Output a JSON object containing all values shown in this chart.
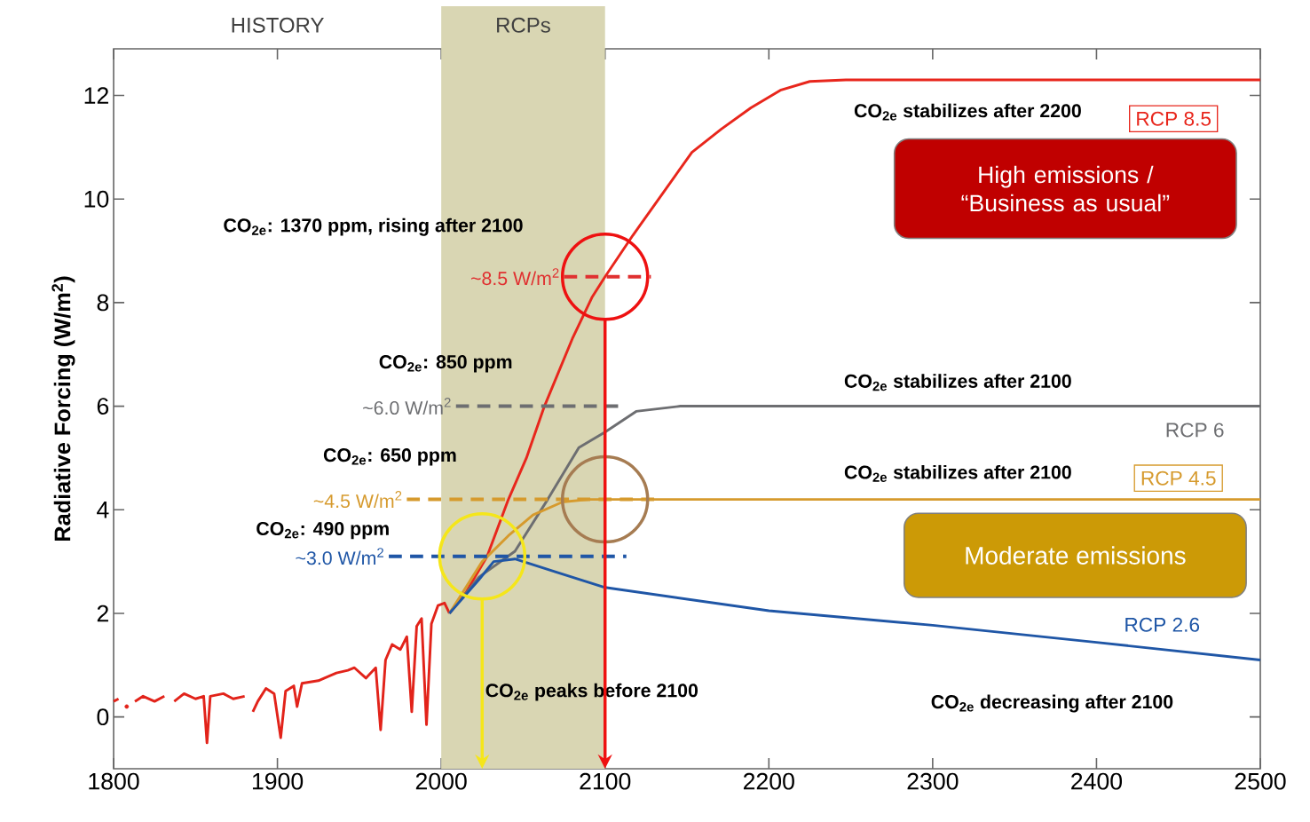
{
  "chart_data": {
    "type": "line",
    "ylabel": "Radiative Forcing (W/m$^{2}$)",
    "xlim": [
      1800,
      2500
    ],
    "xticks": [
      1800,
      1900,
      2000,
      2100,
      2200,
      2300,
      2400,
      2500
    ],
    "ylim": [
      -1,
      12.9
    ],
    "yticks": [
      0,
      2,
      4,
      6,
      8,
      10,
      12
    ],
    "marker": "none",
    "line_style": "solid",
    "legend": "right",
    "series": [
      {
        "color": "#e2231a",
        "x": [
          1800,
          1803,
          1806,
          1808,
          1810,
          1813,
          1818,
          1825,
          1831,
          1835,
          1837,
          1843,
          1850,
          1855,
          1857,
          1859,
          1867,
          1873,
          1880,
          1883,
          1885,
          1888,
          1893,
          1898,
          1902,
          1905,
          1910,
          1912,
          1915,
          1925,
          1936,
          1943,
          1947,
          1954,
          1960,
          1963,
          1966,
          1970,
          1975,
          1979,
          1982,
          1985,
          1988,
          1991,
          1994,
          1998,
          2002,
          2005
        ],
        "values": [
          0.3,
          0.35,
          null,
          0.2,
          null,
          0.3,
          0.4,
          0.3,
          0.4,
          null,
          0.3,
          0.45,
          0.35,
          0.4,
          -0.5,
          0.4,
          0.45,
          0.35,
          0.4,
          null,
          0.1,
          0.3,
          0.55,
          0.45,
          -0.4,
          0.5,
          0.6,
          0.2,
          0.65,
          0.7,
          0.85,
          0.9,
          0.95,
          0.75,
          0.95,
          -0.25,
          1.1,
          1.4,
          1.3,
          1.55,
          0.1,
          1.75,
          1.9,
          -0.15,
          1.8,
          2.15,
          2.2,
          2.0
        ]
      },
      {
        "name": "RCP 8.5",
        "color": "#e8261c",
        "x": [
          2005,
          2015,
          2028,
          2041,
          2052,
          2063,
          2080,
          2092,
          2100,
          2117,
          2135,
          2153,
          2171,
          2189,
          2207,
          2225,
          2247,
          2500
        ],
        "values": [
          2.0,
          2.4,
          3.1,
          4.2,
          5.0,
          6.0,
          7.3,
          8.1,
          8.5,
          9.3,
          10.1,
          10.9,
          11.35,
          11.76,
          12.1,
          12.27,
          12.3,
          12.3
        ]
      },
      {
        "name": "RCP 6",
        "color": "#6d6e71",
        "x": [
          2005,
          2023,
          2045,
          2065,
          2084,
          2100,
          2119,
          2146,
          2500
        ],
        "values": [
          2.0,
          2.7,
          3.2,
          4.2,
          5.2,
          5.5,
          5.9,
          6.0,
          6.0
        ]
      },
      {
        "name": "RCP 4.5",
        "color": "#d69a2d",
        "x": [
          2005,
          2025,
          2041,
          2056,
          2074,
          2090,
          2150,
          2500
        ],
        "values": [
          2.0,
          3.0,
          3.5,
          3.9,
          4.15,
          4.2,
          4.2,
          4.2
        ]
      },
      {
        "name": "RCP 2.6",
        "color": "#1f56a6",
        "x": [
          2005,
          2023,
          2032,
          2045,
          2070,
          2100,
          2200,
          2300,
          2400,
          2500
        ],
        "values": [
          2.0,
          2.65,
          3.0,
          3.05,
          2.8,
          2.5,
          2.05,
          1.77,
          1.44,
          1.1
        ]
      }
    ],
    "ref_lines": [
      {
        "axis": "y",
        "value": 8.5,
        "label": "~8.5 W/m$^{2}$",
        "color": "#e03030",
        "line_style": "dashed"
      },
      {
        "axis": "y",
        "value": 6.0,
        "label": "~6.0 W/m$^{2}$",
        "color": "#6d6e71",
        "line_style": "dashed"
      },
      {
        "axis": "y",
        "value": 4.2,
        "label": "~4.5 W/m$^{2}$",
        "color": "#d69a2d",
        "line_style": "dashed"
      },
      {
        "axis": "y",
        "value": 3.1,
        "label": "~3.0 W/m$^{2}$",
        "color": "#1f56a6",
        "line_style": "dashed"
      },
      {
        "axis": "x",
        "value": 2025,
        "color": "#f5e61a",
        "line_style": "solid"
      },
      {
        "axis": "x",
        "value": 2100,
        "color": "#ee1111",
        "line_style": "solid"
      }
    ],
    "bands": [
      {
        "axis": "x",
        "from": 2000,
        "to": 2100,
        "label": "RCPs",
        "color": "#d9d6b3"
      }
    ],
    "annotations": [
      "HISTORY",
      "CO$_{2e}$: 1370 ppm, rising after 2100",
      "CO$_{2e}$: 850 ppm",
      "CO$_{2e}$: 650 ppm",
      "CO$_{2e}$: 490 ppm",
      "CO$_{2e}$ peaks before 2100",
      "CO$_{2e}$ stabilizes after 2200",
      "High emissions / “Business as usual”",
      "CO$_{2e}$ stabilizes after 2100",
      "CO$_{2e}$ stabilizes after 2100",
      "Moderate emissions",
      "CO$_{2e}$ decreasing after 2100"
    ]
  }
}
